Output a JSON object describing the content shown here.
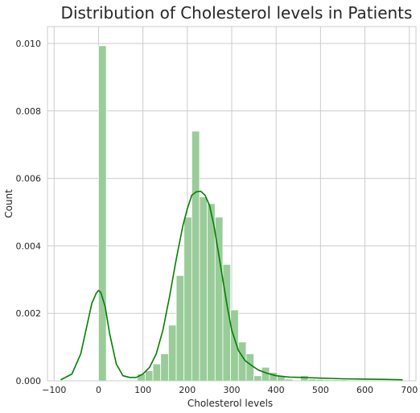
{
  "chart_data": {
    "type": "bar",
    "title": "Distribution of Cholesterol levels in Patients",
    "xlabel": "Cholesterol levels",
    "ylabel": "Count",
    "xlim": [
      -115,
      715
    ],
    "ylim": [
      0,
      0.0105
    ],
    "xticks": [
      -100,
      0,
      100,
      200,
      300,
      400,
      500,
      600,
      700
    ],
    "xtick_labels": [
      "−100",
      "0",
      "100",
      "200",
      "300",
      "400",
      "500",
      "600",
      "700"
    ],
    "yticks": [
      0,
      0.002,
      0.004,
      0.006,
      0.008,
      0.01
    ],
    "ytick_labels": [
      "0.000",
      "0.002",
      "0.004",
      "0.006",
      "0.008",
      "0.010"
    ],
    "grid": true,
    "bar_color": "#99cc99",
    "line_color": "#008000",
    "bins": [
      {
        "x0": 0,
        "x1": 17.5,
        "density": 0.00993
      },
      {
        "x0": 17.5,
        "x1": 35,
        "density": 0
      },
      {
        "x0": 35,
        "x1": 52.5,
        "density": 0
      },
      {
        "x0": 52.5,
        "x1": 70,
        "density": 0
      },
      {
        "x0": 70,
        "x1": 87.5,
        "density": 0
      },
      {
        "x0": 87.5,
        "x1": 105,
        "density": 0.0002
      },
      {
        "x0": 105,
        "x1": 122.5,
        "density": 0.0003
      },
      {
        "x0": 122.5,
        "x1": 140,
        "density": 0.0005
      },
      {
        "x0": 140,
        "x1": 157.5,
        "density": 0.0008
      },
      {
        "x0": 157.5,
        "x1": 175,
        "density": 0.00165
      },
      {
        "x0": 175,
        "x1": 192.5,
        "density": 0.00312
      },
      {
        "x0": 192.5,
        "x1": 210,
        "density": 0.00485
      },
      {
        "x0": 210,
        "x1": 227.5,
        "density": 0.0074
      },
      {
        "x0": 227.5,
        "x1": 245,
        "density": 0.00545
      },
      {
        "x0": 245,
        "x1": 262.5,
        "density": 0.00525
      },
      {
        "x0": 262.5,
        "x1": 280,
        "density": 0.00485
      },
      {
        "x0": 280,
        "x1": 297.5,
        "density": 0.00345
      },
      {
        "x0": 297.5,
        "x1": 315,
        "density": 0.0021
      },
      {
        "x0": 315,
        "x1": 332.5,
        "density": 0.00115
      },
      {
        "x0": 332.5,
        "x1": 350,
        "density": 0.0008
      },
      {
        "x0": 350,
        "x1": 367.5,
        "density": 0.00015
      },
      {
        "x0": 367.5,
        "x1": 385,
        "density": 0.0004
      },
      {
        "x0": 385,
        "x1": 402.5,
        "density": 0.00025
      },
      {
        "x0": 402.5,
        "x1": 420,
        "density": 0.00015
      },
      {
        "x0": 420,
        "x1": 437.5,
        "density": 5e-05
      },
      {
        "x0": 437.5,
        "x1": 455,
        "density": 0
      },
      {
        "x0": 455,
        "x1": 472.5,
        "density": 0.00015
      },
      {
        "x0": 472.5,
        "x1": 490,
        "density": 5e-05
      },
      {
        "x0": 490,
        "x1": 507.5,
        "density": 4e-05
      },
      {
        "x0": 507.5,
        "x1": 525,
        "density": 3e-05
      },
      {
        "x0": 525,
        "x1": 542.5,
        "density": 3e-05
      },
      {
        "x0": 542.5,
        "x1": 560,
        "density": 3e-05
      },
      {
        "x0": 560,
        "x1": 577.5,
        "density": 2e-05
      }
    ],
    "kde": {
      "x": [
        -85,
        -60,
        -40,
        -25,
        -15,
        -5,
        0,
        5,
        15,
        25,
        40,
        55,
        70,
        85,
        100,
        115,
        130,
        145,
        160,
        175,
        190,
        200,
        210,
        220,
        230,
        240,
        250,
        260,
        270,
        280,
        290,
        300,
        315,
        330,
        345,
        360,
        380,
        400,
        430,
        460,
        500,
        550,
        600,
        650,
        685
      ],
      "y": [
        3e-05,
        0.0002,
        0.0008,
        0.0017,
        0.0023,
        0.0026,
        0.00268,
        0.00262,
        0.0022,
        0.0014,
        0.0005,
        0.00015,
        0.0001,
        0.0001,
        0.0002,
        0.0004,
        0.0008,
        0.0015,
        0.0025,
        0.0036,
        0.0046,
        0.0051,
        0.0055,
        0.0056,
        0.00562,
        0.0055,
        0.0052,
        0.0046,
        0.0038,
        0.003,
        0.0022,
        0.0015,
        0.0009,
        0.0006,
        0.00045,
        0.00032,
        0.00022,
        0.00015,
        0.00011,
        0.0001,
        8e-05,
        6e-05,
        5e-05,
        4e-05,
        3e-05
      ]
    }
  }
}
